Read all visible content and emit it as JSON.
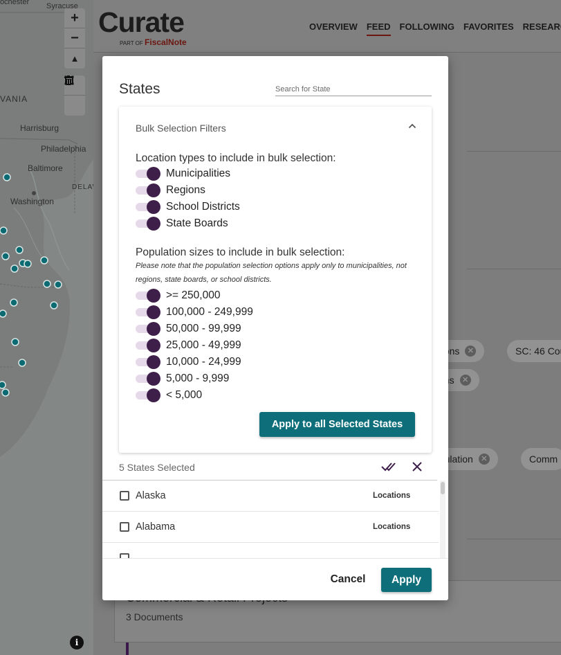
{
  "map": {
    "labels": {
      "rochester": "Rochester",
      "syracuse": "Syracuse",
      "vania": "VANIA",
      "harrisburg": "Harrisburg",
      "philadelphia": "Philadelphia",
      "baltimore": "Baltimore",
      "delaw": "DELAW",
      "washington": "Washington"
    },
    "controls": {
      "zoom_in": "+",
      "zoom_out": "−",
      "compass": "▲",
      "draw_box": "⧠",
      "trash": "🗑"
    },
    "info": "i"
  },
  "header": {
    "logo_main": "Curate",
    "logo_part_of": "PART OF",
    "logo_brand": "FiscalNote",
    "nav": [
      {
        "label": "OVERVIEW",
        "active": false
      },
      {
        "label": "FEED",
        "active": true
      },
      {
        "label": "FOLLOWING",
        "active": false
      },
      {
        "label": "FAVORITES",
        "active": false
      },
      {
        "label": "RESEARCH",
        "active": false
      }
    ]
  },
  "background": {
    "chips": [
      {
        "label": "ations"
      },
      {
        "label": "SC: 46 Cou"
      },
      {
        "label": "tions"
      },
      {
        "label": "egulation"
      },
      {
        "label": "Comm"
      }
    ],
    "card_title": "Commercial & Retail Projects",
    "card_sub": "3 Documents"
  },
  "modal": {
    "title": "States",
    "search_placeholder": "Search for State",
    "bulk": {
      "heading": "Bulk Selection Filters",
      "location_label": "Location types to include in bulk selection:",
      "location_types": [
        "Municipalities",
        "Regions",
        "School Districts",
        "State Boards"
      ],
      "population_label": "Population sizes to include in bulk selection:",
      "population_note": "Please note that the population selection options apply only to municipalities, not regions, state boards, or school districts.",
      "population_sizes": [
        ">= 250,000",
        "100,000 - 249,999",
        "50,000 - 99,999",
        "25,000 - 49,999",
        "10,000 - 24,999",
        "5,000 - 9,999",
        "< 5,000"
      ],
      "apply_all_label": "Apply to all Selected States"
    },
    "selected_count": "5 States Selected",
    "states": [
      {
        "name": "Alaska",
        "link": "Locations"
      },
      {
        "name": "Alabama",
        "link": "Locations"
      }
    ],
    "cancel_label": "Cancel",
    "apply_label": "Apply"
  },
  "colors": {
    "teal": "#0e6f7a",
    "purple": "#3e1f4a",
    "track": "#e5d9ea",
    "brand_red": "#6b1610"
  }
}
